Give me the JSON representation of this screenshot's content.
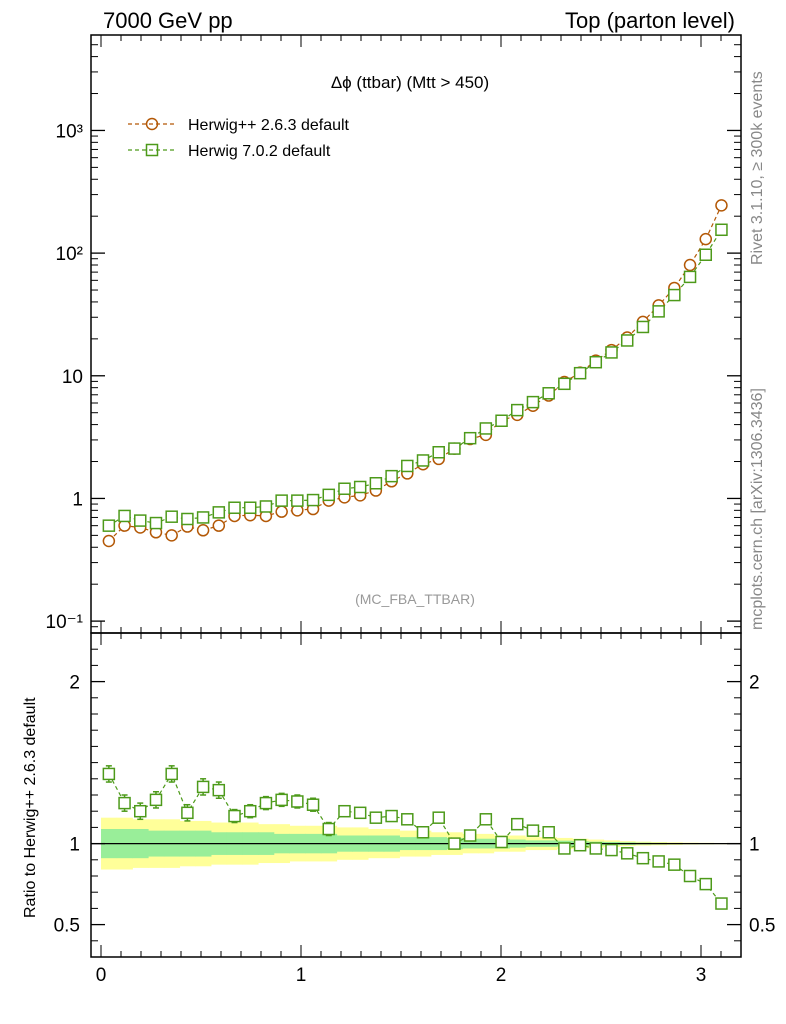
{
  "header": {
    "left": "7000 GeV pp",
    "right": "Top (parton level)"
  },
  "side_labels": {
    "rivet": "Rivet 3.1.10, ≥ 300k events",
    "mcplots": "mcplots.cern.ch [arXiv:1306.3436]"
  },
  "chart_data": {
    "type": "line",
    "title": "Δϕ (ttbar) (Mtt > 450)",
    "analysis_tag": "(MC_FBA_TTBAR)",
    "x": [
      0.0393,
      0.1178,
      0.1963,
      0.2749,
      0.3534,
      0.432,
      0.5105,
      0.589,
      0.6676,
      0.7461,
      0.8247,
      0.9032,
      0.9817,
      1.0603,
      1.1388,
      1.2174,
      1.2959,
      1.3744,
      1.453,
      1.5315,
      1.6101,
      1.6886,
      1.7671,
      1.8457,
      1.9242,
      2.0028,
      2.0813,
      2.1598,
      2.2384,
      2.3169,
      2.3955,
      2.474,
      2.5525,
      2.6311,
      2.7096,
      2.7882,
      2.8667,
      2.9452,
      3.0238,
      3.1023
    ],
    "xlim": [
      -0.05,
      3.2
    ],
    "xticks": [
      "0",
      "1",
      "2",
      "3"
    ],
    "main_panel": {
      "yscale": "log",
      "ylim": [
        0.08,
        6000
      ],
      "yticks": [
        "10⁻¹",
        "1",
        "10",
        "10²",
        "10³"
      ]
    },
    "ratio_panel": {
      "ylabel": "Ratio to Herwig++ 2.6.3 default",
      "ylim": [
        0.3,
        2.3
      ],
      "yticks": [
        "0.5",
        "1",
        "2"
      ],
      "band_yellow_halfwidth": [
        0.16,
        0.16,
        0.15,
        0.15,
        0.15,
        0.14,
        0.14,
        0.13,
        0.13,
        0.13,
        0.12,
        0.12,
        0.11,
        0.11,
        0.11,
        0.1,
        0.1,
        0.09,
        0.09,
        0.08,
        0.08,
        0.07,
        0.07,
        0.06,
        0.06,
        0.05,
        0.05,
        0.04,
        0.04,
        0.035,
        0.03,
        0.025,
        0.02,
        0.015,
        0.012,
        0.01,
        0.008,
        0.006,
        0.005,
        0.004
      ],
      "band_green_halfwidth": [
        0.09,
        0.09,
        0.09,
        0.08,
        0.08,
        0.08,
        0.08,
        0.07,
        0.07,
        0.07,
        0.07,
        0.06,
        0.06,
        0.06,
        0.06,
        0.05,
        0.05,
        0.05,
        0.05,
        0.04,
        0.04,
        0.04,
        0.035,
        0.03,
        0.03,
        0.03,
        0.025,
        0.02,
        0.02,
        0.018,
        0.015,
        0.012,
        0.01,
        0.008,
        0.006,
        0.005,
        0.004,
        0.003,
        0.003,
        0.002
      ]
    },
    "series": [
      {
        "name": "Herwig++ 2.6.3 default",
        "color": "#b35806",
        "marker": "circle",
        "values": [
          0.45,
          0.6,
          0.58,
          0.53,
          0.5,
          0.59,
          0.55,
          0.6,
          0.72,
          0.73,
          0.72,
          0.78,
          0.8,
          0.82,
          0.96,
          1.02,
          1.06,
          1.16,
          1.38,
          1.6,
          1.9,
          2.1,
          2.55,
          3.05,
          3.3,
          4.3,
          4.8,
          5.7,
          6.9,
          8.9,
          10.6,
          13.3,
          16.2,
          20.5,
          27.5,
          37.5,
          52,
          80,
          130,
          245
        ],
        "ratio": [
          1,
          1,
          1,
          1,
          1,
          1,
          1,
          1,
          1,
          1,
          1,
          1,
          1,
          1,
          1,
          1,
          1,
          1,
          1,
          1,
          1,
          1,
          1,
          1,
          1,
          1,
          1,
          1,
          1,
          1,
          1,
          1,
          1,
          1,
          1,
          1,
          1,
          1,
          1,
          1
        ]
      },
      {
        "name": "Herwig 7.0.2 default",
        "color": "#4d9a1a",
        "marker": "square",
        "values": [
          0.6,
          0.72,
          0.66,
          0.63,
          0.71,
          0.68,
          0.7,
          0.77,
          0.84,
          0.84,
          0.86,
          0.96,
          0.96,
          0.97,
          1.07,
          1.2,
          1.24,
          1.33,
          1.52,
          1.84,
          2.04,
          2.38,
          2.55,
          3.1,
          3.72,
          4.3,
          5.25,
          6.1,
          7.2,
          8.6,
          10.5,
          12.9,
          15.5,
          19.4,
          25,
          33.5,
          45.5,
          64,
          97,
          155
        ],
        "ratio": [
          1.43,
          1.25,
          1.2,
          1.27,
          1.43,
          1.19,
          1.35,
          1.33,
          1.17,
          1.2,
          1.25,
          1.27,
          1.26,
          1.24,
          1.09,
          1.2,
          1.19,
          1.16,
          1.17,
          1.15,
          1.07,
          1.16,
          1.0,
          1.05,
          1.15,
          1.01,
          1.12,
          1.08,
          1.07,
          0.97,
          0.99,
          0.97,
          0.96,
          0.94,
          0.91,
          0.89,
          0.87,
          0.8,
          0.75,
          0.63
        ],
        "ratio_err": [
          0.05,
          0.05,
          0.05,
          0.05,
          0.05,
          0.05,
          0.05,
          0.05,
          0.04,
          0.04,
          0.04,
          0.04,
          0.04,
          0.04,
          0.04,
          0.03,
          0.03,
          0.03,
          0.03,
          0.03,
          0.02,
          0.02,
          0.02,
          0.02,
          0.02,
          0.02,
          0.02,
          0.01,
          0.01,
          0.01,
          0.01,
          0.01,
          0.01,
          0.01,
          0.01,
          0.01,
          0.01,
          0.01,
          0.01,
          0.01
        ]
      }
    ]
  }
}
